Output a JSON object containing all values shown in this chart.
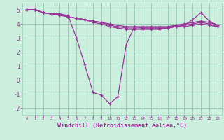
{
  "xlabel": "Windchill (Refroidissement éolien,°C)",
  "background_color": "#cceedd",
  "grid_color": "#99ccbb",
  "line_color": "#993399",
  "xlim": [
    -0.5,
    23.5
  ],
  "ylim": [
    -2.5,
    5.5
  ],
  "yticks": [
    -2,
    -1,
    0,
    1,
    2,
    3,
    4,
    5
  ],
  "xticks": [
    0,
    1,
    2,
    3,
    4,
    5,
    6,
    7,
    8,
    9,
    10,
    11,
    12,
    13,
    14,
    15,
    16,
    17,
    18,
    19,
    20,
    21,
    22,
    23
  ],
  "lines": [
    {
      "x": [
        0,
        1,
        2,
        3,
        4,
        5,
        6,
        7,
        8,
        9,
        10,
        11,
        12,
        13,
        14,
        15,
        16,
        17,
        18,
        19,
        20,
        21,
        22,
        23
      ],
      "y": [
        5.0,
        5.0,
        4.8,
        4.7,
        4.7,
        4.6,
        3.0,
        1.1,
        -0.9,
        -1.1,
        -1.7,
        -1.2,
        2.5,
        3.8,
        3.7,
        3.7,
        3.7,
        3.7,
        3.9,
        3.9,
        4.3,
        4.8,
        4.2,
        3.9
      ]
    },
    {
      "x": [
        0,
        1,
        2,
        3,
        4,
        5,
        6,
        7,
        8,
        9,
        10,
        11,
        12,
        13,
        14,
        15,
        16,
        17,
        18,
        19,
        20,
        21,
        22,
        23
      ],
      "y": [
        5.0,
        5.0,
        4.8,
        4.7,
        4.7,
        4.5,
        4.4,
        4.3,
        4.2,
        4.1,
        4.0,
        3.9,
        3.8,
        3.8,
        3.8,
        3.8,
        3.8,
        3.8,
        3.9,
        4.0,
        4.1,
        4.2,
        4.1,
        3.9
      ]
    },
    {
      "x": [
        0,
        1,
        2,
        3,
        4,
        5,
        6,
        7,
        8,
        9,
        10,
        11,
        12,
        13,
        14,
        15,
        16,
        17,
        18,
        19,
        20,
        21,
        22,
        23
      ],
      "y": [
        5.0,
        5.0,
        4.8,
        4.7,
        4.7,
        4.5,
        4.4,
        4.3,
        4.2,
        4.1,
        3.9,
        3.8,
        3.7,
        3.7,
        3.7,
        3.7,
        3.7,
        3.7,
        3.8,
        3.9,
        4.0,
        4.1,
        4.0,
        3.8
      ]
    },
    {
      "x": [
        0,
        1,
        2,
        3,
        4,
        5,
        6,
        7,
        8,
        9,
        10,
        11,
        12,
        13,
        14,
        15,
        16,
        17,
        18,
        19,
        20,
        21,
        22,
        23
      ],
      "y": [
        5.0,
        5.0,
        4.8,
        4.7,
        4.6,
        4.5,
        4.4,
        4.3,
        4.1,
        4.0,
        3.8,
        3.7,
        3.6,
        3.6,
        3.6,
        3.6,
        3.6,
        3.7,
        3.8,
        3.8,
        3.9,
        4.0,
        3.9,
        3.8
      ]
    }
  ],
  "xlabel_fontsize": 6.0,
  "xtick_fontsize": 4.2,
  "ytick_fontsize": 5.5
}
